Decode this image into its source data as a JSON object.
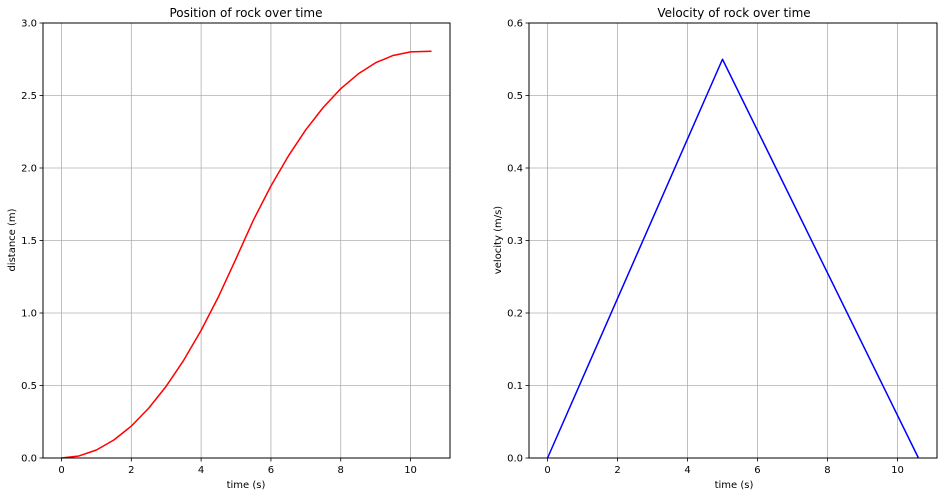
{
  "chart_data": [
    {
      "type": "line",
      "title": "Position of rock over time",
      "xlabel": "time (s)",
      "ylabel": "distance (m)",
      "xlim": [
        -0.53,
        11.13
      ],
      "ylim": [
        0,
        3.0
      ],
      "xticks": [
        0,
        2,
        4,
        6,
        8,
        10
      ],
      "xtick_labels": [
        "0",
        "2",
        "4",
        "6",
        "8",
        "10"
      ],
      "yticks": [
        0.0,
        0.5,
        1.0,
        1.5,
        2.0,
        2.5,
        3.0
      ],
      "ytick_labels": [
        "0.0",
        "0.5",
        "1.0",
        "1.5",
        "2.0",
        "2.5",
        "3.0"
      ],
      "grid": true,
      "series": [
        {
          "color": "#ff0000",
          "x": [
            0,
            0.5,
            1,
            1.5,
            2,
            2.5,
            3,
            3.5,
            4,
            4.5,
            5,
            5.5,
            6,
            6.5,
            7,
            7.5,
            8,
            8.5,
            9,
            9.5,
            10,
            10.6
          ],
          "y": [
            0,
            0.014,
            0.055,
            0.124,
            0.22,
            0.344,
            0.495,
            0.674,
            0.88,
            1.114,
            1.375,
            1.642,
            1.876,
            2.083,
            2.264,
            2.418,
            2.547,
            2.649,
            2.726,
            2.776,
            2.801,
            2.805
          ]
        }
      ]
    },
    {
      "type": "line",
      "title": "Velocity of rock over time",
      "xlabel": "time (s)",
      "ylabel": "velocity (m/s)",
      "xlim": [
        -0.53,
        11.13
      ],
      "ylim": [
        0,
        0.6
      ],
      "xticks": [
        0,
        2,
        4,
        6,
        8,
        10
      ],
      "xtick_labels": [
        "0",
        "2",
        "4",
        "6",
        "8",
        "10"
      ],
      "yticks": [
        0.0,
        0.1,
        0.2,
        0.3,
        0.4,
        0.5,
        0.6
      ],
      "ytick_labels": [
        "0.0",
        "0.1",
        "0.2",
        "0.3",
        "0.4",
        "0.5",
        "0.6"
      ],
      "grid": true,
      "series": [
        {
          "color": "#0000ff",
          "x": [
            0,
            5.0,
            10.6
          ],
          "y": [
            0,
            0.55,
            0
          ]
        }
      ]
    }
  ]
}
